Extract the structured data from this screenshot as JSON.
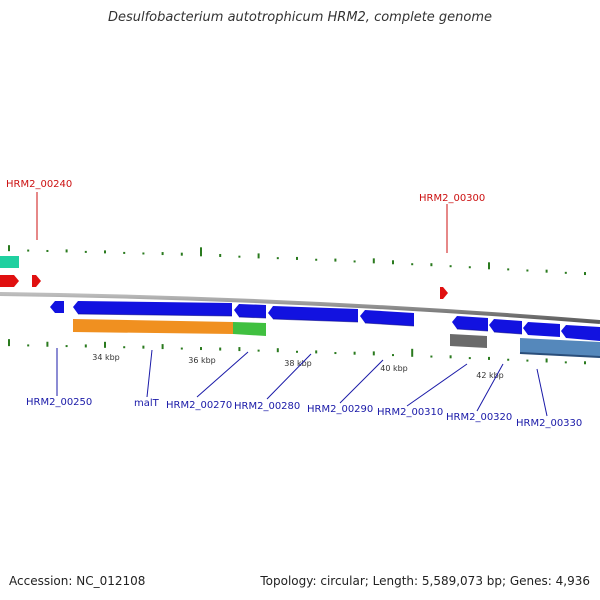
{
  "title": "Desulfobacterium autotrophicum HRM2, complete genome",
  "footer": {
    "accession": "Accession: NC_012108",
    "summary": "Topology: circular; Length: 5,589,073 bp; Genes: 4,936"
  },
  "colors": {
    "forward_gene": "#e01010",
    "reverse_gene": "#1212e0",
    "label_forward": "#cc1111",
    "label_reverse": "#1a1aa8",
    "backbone": "#8a8a8a",
    "gc_tick": "#2a7a1e",
    "orange_feature": "#f09020",
    "green_feature": "#40c040",
    "teal_feature": "#20d0a0",
    "grey_feature": "#6a6a6a",
    "steel_feature": "#5588bb"
  },
  "scale_labels": [
    "34 kbp",
    "36 kbp",
    "38 kbp",
    "40 kbp",
    "42 kbp"
  ],
  "labels_forward": [
    "HRM2_00240",
    "HRM2_00300"
  ],
  "labels_reverse": [
    "HRM2_00250",
    "malT",
    "HRM2_00270",
    "HRM2_00280",
    "HRM2_00290",
    "HRM2_00310",
    "HRM2_00320",
    "HRM2_00330"
  ]
}
